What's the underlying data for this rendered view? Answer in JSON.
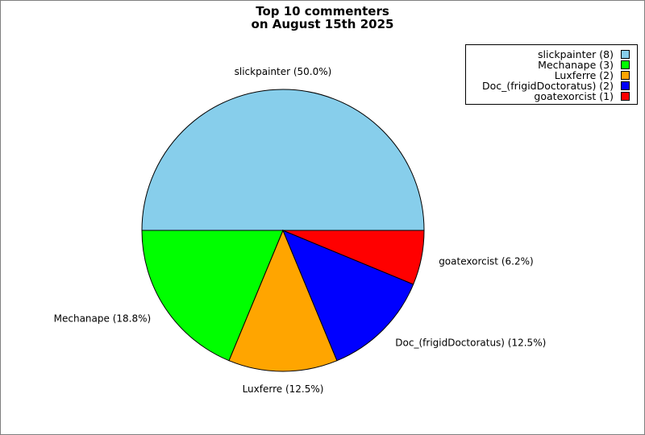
{
  "chart_data": {
    "type": "pie",
    "title_lines": [
      "Top 10 commenters",
      "on August 15th 2025"
    ],
    "slices": [
      {
        "label": "slickpainter",
        "value": 8,
        "percent": "50.0%",
        "color": "#87ceeb"
      },
      {
        "label": "Mechanape",
        "value": 3,
        "percent": "18.8%",
        "color": "#00ff00"
      },
      {
        "label": "Luxferre",
        "value": 2,
        "percent": "12.5%",
        "color": "#ffa500"
      },
      {
        "label": "Doc_(frigidDoctoratus)",
        "value": 2,
        "percent": "12.5%",
        "color": "#0000ff"
      },
      {
        "label": "goatexorcist",
        "value": 1,
        "percent": "6.2%",
        "color": "#ff0000"
      }
    ],
    "legend_position": "top-right"
  }
}
